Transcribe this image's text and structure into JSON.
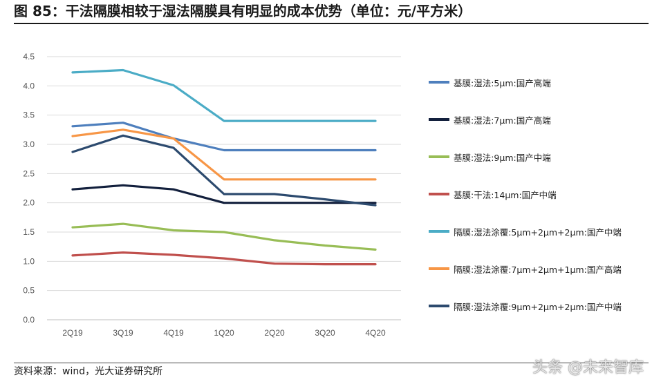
{
  "title": "图 85：干法隔膜相较于湿法隔膜具有明显的成本优势（单位：元/平方米）",
  "source": "资料来源：wind，光大证券研究所",
  "watermark": "头条 @未来智库",
  "chart_data": {
    "type": "line",
    "title": "图 85：干法隔膜相较于湿法隔膜具有明显的成本优势（单位：元/平方米）",
    "xlabel": "",
    "ylabel": "",
    "ylim": [
      0,
      4.5
    ],
    "yticks": [
      "0.0",
      "0.5",
      "1.0",
      "1.5",
      "2.0",
      "2.5",
      "3.0",
      "3.5",
      "4.0",
      "4.5"
    ],
    "categories": [
      "2Q19",
      "3Q19",
      "4Q19",
      "1Q20",
      "2Q20",
      "3Q20",
      "4Q20"
    ],
    "grid": true,
    "legend_position": "right",
    "series": [
      {
        "name": "基膜:湿法:5μm:国产高端",
        "color": "#4e7fbd",
        "values": [
          3.31,
          3.37,
          3.1,
          2.9,
          2.9,
          2.9,
          2.9
        ]
      },
      {
        "name": "基膜:湿法:7μm:国产高端",
        "color": "#13203d",
        "values": [
          2.23,
          2.3,
          2.23,
          2.0,
          2.0,
          2.0,
          2.0
        ]
      },
      {
        "name": "基膜:湿法:9μm:国产中端",
        "color": "#98bd56",
        "values": [
          1.58,
          1.64,
          1.53,
          1.5,
          1.36,
          1.27,
          1.2
        ]
      },
      {
        "name": "基膜:干法:14μm:国产中端",
        "color": "#c0504d",
        "values": [
          1.1,
          1.15,
          1.11,
          1.05,
          0.96,
          0.95,
          0.95
        ]
      },
      {
        "name": "隔膜:湿法涂覆:5μm+2μm+2μm:国产中端",
        "color": "#4bacc6",
        "values": [
          4.23,
          4.27,
          4.01,
          3.4,
          3.4,
          3.4,
          3.4
        ]
      },
      {
        "name": "隔膜:湿法涂覆:7μm+2μm+1μm:国产高端",
        "color": "#f79646",
        "values": [
          3.14,
          3.25,
          3.1,
          2.4,
          2.4,
          2.4,
          2.4
        ]
      },
      {
        "name": "隔膜:湿法涂覆:9μm+2μm+2μm:国产中端",
        "color": "#2c4a6e",
        "values": [
          2.87,
          3.15,
          2.94,
          2.15,
          2.15,
          2.06,
          1.96
        ]
      }
    ]
  }
}
